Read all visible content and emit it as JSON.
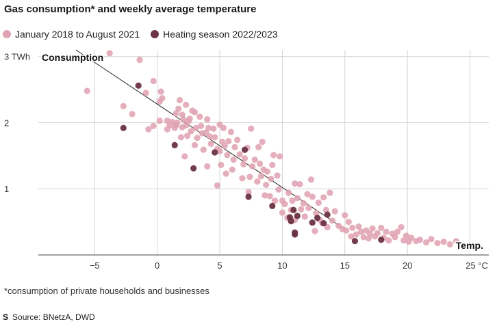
{
  "title": "Gas consumption* and weekly average temperature",
  "legend": [
    {
      "label": "January 2018 to August 2021",
      "color": "#e0a3b3"
    },
    {
      "label": "Heating season 2022/2023",
      "color": "#6b3345"
    }
  ],
  "footnote": "*consumption of private households and businesses",
  "source_logo": "S",
  "source": "Source: BNetzA, DWD",
  "chart_data": {
    "type": "scatter",
    "title": "Gas consumption* and weekly average temperature",
    "xlabel": "Temp.",
    "ylabel": "Consumption",
    "x_unit": "°C",
    "y_unit": "TWh",
    "xlim": [
      -9.5,
      26.5
    ],
    "ylim": [
      0,
      3.1
    ],
    "x_ticks": [
      -5,
      0,
      5,
      10,
      15,
      20,
      25
    ],
    "x_tick_labels": [
      "−5",
      "0",
      "5",
      "10",
      "15",
      "20",
      "25 °C"
    ],
    "y_ticks": [
      1,
      2,
      3
    ],
    "y_tick_labels": [
      "1",
      "2",
      "3 TWh"
    ],
    "grid": true,
    "trend_line": {
      "from": [
        -6.5,
        3.1
      ],
      "to": [
        15.0,
        0.39
      ]
    },
    "series": [
      {
        "name": "January 2018 to August 2021",
        "color": "#e0a3b3",
        "points": [
          [
            -5.6,
            2.48
          ],
          [
            -3.8,
            3.05
          ],
          [
            -2.7,
            2.25
          ],
          [
            -2.0,
            2.13
          ],
          [
            -1.4,
            2.95
          ],
          [
            -0.9,
            2.45
          ],
          [
            -0.7,
            1.9
          ],
          [
            -0.3,
            1.95
          ],
          [
            -0.3,
            2.63
          ],
          [
            0.2,
            2.32
          ],
          [
            0.2,
            2.03
          ],
          [
            0.3,
            2.47
          ],
          [
            0.4,
            2.37
          ],
          [
            0.8,
            2.03
          ],
          [
            0.8,
            1.9
          ],
          [
            1.0,
            1.96
          ],
          [
            1.2,
            2.01
          ],
          [
            1.4,
            1.92
          ],
          [
            1.5,
            2.14
          ],
          [
            1.5,
            1.96
          ],
          [
            1.6,
            2.0
          ],
          [
            1.7,
            2.21
          ],
          [
            1.8,
            2.34
          ],
          [
            1.9,
            1.78
          ],
          [
            2.0,
            2.12
          ],
          [
            2.0,
            1.93
          ],
          [
            2.1,
            2.05
          ],
          [
            2.2,
            1.49
          ],
          [
            2.3,
            2.27
          ],
          [
            2.3,
            1.96
          ],
          [
            2.4,
            1.8
          ],
          [
            2.5,
            2.02
          ],
          [
            2.6,
            2.06
          ],
          [
            2.7,
            1.87
          ],
          [
            2.8,
            2.18
          ],
          [
            3.0,
            2.16
          ],
          [
            3.0,
            1.66
          ],
          [
            3.1,
            1.92
          ],
          [
            3.2,
            1.77
          ],
          [
            3.4,
            2.09
          ],
          [
            3.5,
            1.95
          ],
          [
            3.6,
            1.84
          ],
          [
            3.7,
            1.59
          ],
          [
            3.9,
            1.85
          ],
          [
            4.0,
            1.34
          ],
          [
            4.0,
            2.05
          ],
          [
            4.1,
            1.92
          ],
          [
            4.2,
            1.79
          ],
          [
            4.3,
            1.68
          ],
          [
            4.5,
            1.91
          ],
          [
            4.6,
            1.78
          ],
          [
            4.8,
            1.6
          ],
          [
            4.8,
            1.05
          ],
          [
            5.0,
            1.57
          ],
          [
            5.0,
            1.97
          ],
          [
            5.1,
            1.36
          ],
          [
            5.2,
            1.71
          ],
          [
            5.3,
            1.92
          ],
          [
            5.4,
            1.65
          ],
          [
            5.5,
            1.23
          ],
          [
            5.6,
            1.51
          ],
          [
            5.7,
            1.72
          ],
          [
            5.9,
            1.86
          ],
          [
            6.0,
            1.29
          ],
          [
            6.1,
            1.44
          ],
          [
            6.2,
            1.63
          ],
          [
            6.4,
            1.74
          ],
          [
            6.6,
            1.52
          ],
          [
            6.8,
            1.16
          ],
          [
            6.9,
            1.37
          ],
          [
            7.0,
            1.46
          ],
          [
            7.2,
            1.62
          ],
          [
            7.3,
            0.95
          ],
          [
            7.4,
            1.18
          ],
          [
            7.5,
            1.91
          ],
          [
            7.6,
            1.34
          ],
          [
            7.8,
            1.44
          ],
          [
            8.0,
            1.11
          ],
          [
            8.1,
            1.63
          ],
          [
            8.2,
            1.38
          ],
          [
            8.3,
            1.19
          ],
          [
            8.4,
            1.71
          ],
          [
            8.5,
            1.29
          ],
          [
            8.6,
            0.9
          ],
          [
            8.7,
            1.06
          ],
          [
            8.8,
            1.26
          ],
          [
            9.0,
            0.89
          ],
          [
            9.1,
            1.15
          ],
          [
            9.2,
            1.36
          ],
          [
            9.3,
            1.51
          ],
          [
            9.4,
            0.82
          ],
          [
            9.6,
            1.2
          ],
          [
            9.7,
            0.99
          ],
          [
            9.8,
            1.49
          ],
          [
            10.0,
            0.82
          ],
          [
            10.0,
            0.64
          ],
          [
            10.2,
            0.77
          ],
          [
            10.4,
            0.56
          ],
          [
            10.5,
            0.94
          ],
          [
            10.7,
            0.68
          ],
          [
            10.8,
            0.82
          ],
          [
            11.0,
            0.53
          ],
          [
            11.0,
            1.08
          ],
          [
            11.2,
            0.86
          ],
          [
            11.4,
            1.07
          ],
          [
            11.5,
            0.69
          ],
          [
            11.7,
            0.78
          ],
          [
            11.8,
            0.58
          ],
          [
            12.0,
            0.92
          ],
          [
            12.1,
            0.71
          ],
          [
            12.3,
            1.14
          ],
          [
            12.4,
            0.88
          ],
          [
            12.6,
            0.36
          ],
          [
            12.7,
            0.63
          ],
          [
            12.9,
            0.79
          ],
          [
            13.0,
            0.53
          ],
          [
            13.2,
            0.48
          ],
          [
            13.3,
            0.87
          ],
          [
            13.5,
            0.68
          ],
          [
            13.6,
            0.42
          ],
          [
            13.8,
            0.94
          ],
          [
            14.0,
            0.52
          ],
          [
            14.2,
            0.66
          ],
          [
            14.5,
            0.44
          ],
          [
            14.8,
            0.39
          ],
          [
            15.0,
            0.6
          ],
          [
            15.1,
            0.37
          ],
          [
            15.3,
            0.5
          ],
          [
            15.5,
            0.28
          ],
          [
            15.6,
            0.41
          ],
          [
            15.9,
            0.31
          ],
          [
            16.1,
            0.43
          ],
          [
            16.3,
            0.35
          ],
          [
            16.5,
            0.27
          ],
          [
            16.7,
            0.37
          ],
          [
            16.9,
            0.25
          ],
          [
            17.0,
            0.32
          ],
          [
            17.2,
            0.4
          ],
          [
            17.4,
            0.28
          ],
          [
            17.6,
            0.33
          ],
          [
            17.9,
            0.41
          ],
          [
            18.1,
            0.26
          ],
          [
            18.3,
            0.35
          ],
          [
            18.5,
            0.22
          ],
          [
            18.8,
            0.32
          ],
          [
            19.0,
            0.27
          ],
          [
            19.2,
            0.35
          ],
          [
            19.5,
            0.42
          ],
          [
            19.7,
            0.22
          ],
          [
            19.9,
            0.29
          ],
          [
            20.1,
            0.2
          ],
          [
            20.3,
            0.26
          ],
          [
            20.7,
            0.21
          ],
          [
            21.0,
            0.23
          ],
          [
            21.5,
            0.19
          ],
          [
            21.9,
            0.24
          ],
          [
            22.4,
            0.18
          ],
          [
            22.9,
            0.2
          ],
          [
            23.4,
            0.16
          ],
          [
            23.9,
            0.21
          ]
        ]
      },
      {
        "name": "Heating season 2022/2023",
        "color": "#6b3345",
        "points": [
          [
            -2.7,
            1.92
          ],
          [
            -1.5,
            2.56
          ],
          [
            1.4,
            1.66
          ],
          [
            2.9,
            1.31
          ],
          [
            4.6,
            1.55
          ],
          [
            7.0,
            1.59
          ],
          [
            7.3,
            0.88
          ],
          [
            9.2,
            0.74
          ],
          [
            10.6,
            0.57
          ],
          [
            10.7,
            0.51
          ],
          [
            10.9,
            0.68
          ],
          [
            11.0,
            0.34
          ],
          [
            11.0,
            0.31
          ],
          [
            11.2,
            0.59
          ],
          [
            12.4,
            0.49
          ],
          [
            12.8,
            0.56
          ],
          [
            13.3,
            0.48
          ],
          [
            13.6,
            0.61
          ],
          [
            15.8,
            0.21
          ],
          [
            17.9,
            0.23
          ]
        ]
      }
    ]
  }
}
